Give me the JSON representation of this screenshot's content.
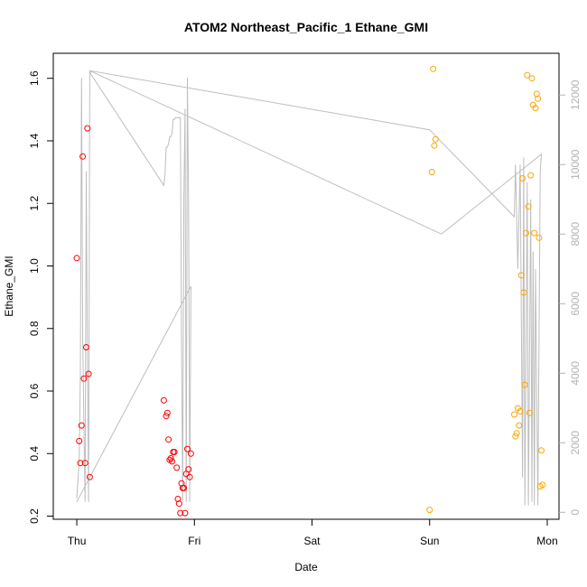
{
  "chart_data": {
    "type": "scatter",
    "title": "ATOM2 Northeast_Pacific_1 Ethane_GMI",
    "xlabel": "Date",
    "ylabel": "Ethane_GMI",
    "x_ticks": [
      {
        "label": "Thu",
        "value": 0
      },
      {
        "label": "Fri",
        "value": 1
      },
      {
        "label": "Sat",
        "value": 2
      },
      {
        "label": "Sun",
        "value": 3
      },
      {
        "label": "Mon",
        "value": 4
      }
    ],
    "xlim": [
      -0.2,
      4.1
    ],
    "ylim": [
      0.19,
      1.68
    ],
    "y_ticks": [
      0.2,
      0.4,
      0.6,
      0.8,
      1.0,
      1.2,
      1.4,
      1.6
    ],
    "y2lim": [
      -200,
      13200
    ],
    "y2_ticks": [
      0,
      2000,
      4000,
      6000,
      8000,
      10000,
      12000
    ],
    "colors": {
      "series_red": "#ff0000",
      "series_orange": "#ffa500",
      "altitude_line": "#bebebe",
      "right_axis": "#b3b3b3"
    },
    "series": [
      {
        "color": "#ff0000",
        "points": [
          [
            0.0,
            1.025
          ],
          [
            0.02,
            0.44
          ],
          [
            0.03,
            0.37
          ],
          [
            0.04,
            0.49
          ],
          [
            0.05,
            1.35
          ],
          [
            0.06,
            0.64
          ],
          [
            0.07,
            0.37
          ],
          [
            0.08,
            0.74
          ],
          [
            0.09,
            1.44
          ],
          [
            0.1,
            0.655
          ],
          [
            0.11,
            0.325
          ],
          [
            0.74,
            0.57
          ],
          [
            0.76,
            0.52
          ],
          [
            0.77,
            0.53
          ],
          [
            0.78,
            0.445
          ],
          [
            0.79,
            0.38
          ],
          [
            0.8,
            0.385
          ],
          [
            0.81,
            0.375
          ],
          [
            0.82,
            0.405
          ],
          [
            0.83,
            0.405
          ],
          [
            0.85,
            0.355
          ],
          [
            0.86,
            0.255
          ],
          [
            0.87,
            0.24
          ],
          [
            0.88,
            0.21
          ],
          [
            0.89,
            0.305
          ],
          [
            0.9,
            0.29
          ],
          [
            0.91,
            0.29
          ],
          [
            0.92,
            0.21
          ],
          [
            0.93,
            0.335
          ],
          [
            0.94,
            0.415
          ],
          [
            0.95,
            0.35
          ],
          [
            0.96,
            0.325
          ],
          [
            0.97,
            0.4
          ]
        ]
      },
      {
        "color": "#ffa500",
        "points": [
          [
            3.0,
            0.22
          ],
          [
            3.02,
            1.3
          ],
          [
            3.03,
            1.63
          ],
          [
            3.04,
            1.385
          ],
          [
            3.05,
            1.405
          ],
          [
            3.72,
            0.525
          ],
          [
            3.73,
            0.455
          ],
          [
            3.74,
            0.465
          ],
          [
            3.75,
            0.545
          ],
          [
            3.76,
            0.49
          ],
          [
            3.77,
            0.535
          ],
          [
            3.78,
            0.97
          ],
          [
            3.79,
            1.28
          ],
          [
            3.8,
            0.915
          ],
          [
            3.81,
            0.62
          ],
          [
            3.82,
            1.105
          ],
          [
            3.83,
            1.61
          ],
          [
            3.84,
            1.19
          ],
          [
            3.85,
            0.53
          ],
          [
            3.86,
            1.29
          ],
          [
            3.87,
            1.6
          ],
          [
            3.88,
            1.515
          ],
          [
            3.89,
            1.105
          ],
          [
            3.9,
            1.505
          ],
          [
            3.91,
            1.55
          ],
          [
            3.92,
            1.535
          ],
          [
            3.93,
            1.09
          ],
          [
            3.94,
            0.295
          ],
          [
            3.95,
            0.41
          ],
          [
            3.96,
            0.3
          ]
        ]
      }
    ],
    "altitude_profile": [
      [
        0.0,
        400
      ],
      [
        0.02,
        1500
      ],
      [
        0.03,
        4000
      ],
      [
        0.04,
        12500
      ],
      [
        0.05,
        5000
      ],
      [
        0.06,
        2500
      ],
      [
        0.07,
        300
      ],
      [
        0.08,
        9800
      ],
      [
        0.09,
        4500
      ],
      [
        0.1,
        300
      ],
      [
        0.11,
        12700
      ],
      [
        3.0,
        11000
      ],
      [
        3.72,
        8500
      ],
      [
        3.73,
        10000
      ],
      [
        3.75,
        7000
      ],
      [
        3.77,
        10000
      ],
      [
        3.79,
        1000
      ],
      [
        3.8,
        10200
      ],
      [
        3.81,
        200
      ],
      [
        3.83,
        9500
      ],
      [
        3.84,
        200
      ],
      [
        3.86,
        9000
      ],
      [
        3.87,
        300
      ],
      [
        3.88,
        7500
      ],
      [
        3.89,
        200
      ],
      [
        3.9,
        7000
      ],
      [
        3.92,
        200
      ],
      [
        3.94,
        9800
      ],
      [
        3.95,
        10300
      ],
      [
        3.1,
        8000
      ],
      [
        0.11,
        12700
      ],
      [
        0.12,
        12600
      ],
      [
        0.74,
        9400
      ],
      [
        0.75,
        9700
      ],
      [
        0.76,
        10500
      ],
      [
        0.77,
        10500
      ],
      [
        0.78,
        10600
      ],
      [
        0.79,
        10800
      ],
      [
        0.8,
        10800
      ],
      [
        0.81,
        10900
      ],
      [
        0.82,
        11300
      ],
      [
        0.83,
        11300
      ],
      [
        0.84,
        11350
      ],
      [
        0.85,
        11350
      ],
      [
        0.86,
        11350
      ],
      [
        0.87,
        11350
      ],
      [
        0.88,
        11350
      ],
      [
        0.89,
        5000
      ],
      [
        0.9,
        300
      ],
      [
        0.91,
        9000
      ],
      [
        0.92,
        11600
      ],
      [
        0.93,
        300
      ],
      [
        0.94,
        12500
      ],
      [
        0.95,
        9000
      ],
      [
        0.96,
        300
      ],
      [
        0.97,
        6500
      ],
      [
        0.0,
        300
      ],
      [
        0.97,
        6500
      ]
    ],
    "grid": false,
    "legend": "none"
  }
}
